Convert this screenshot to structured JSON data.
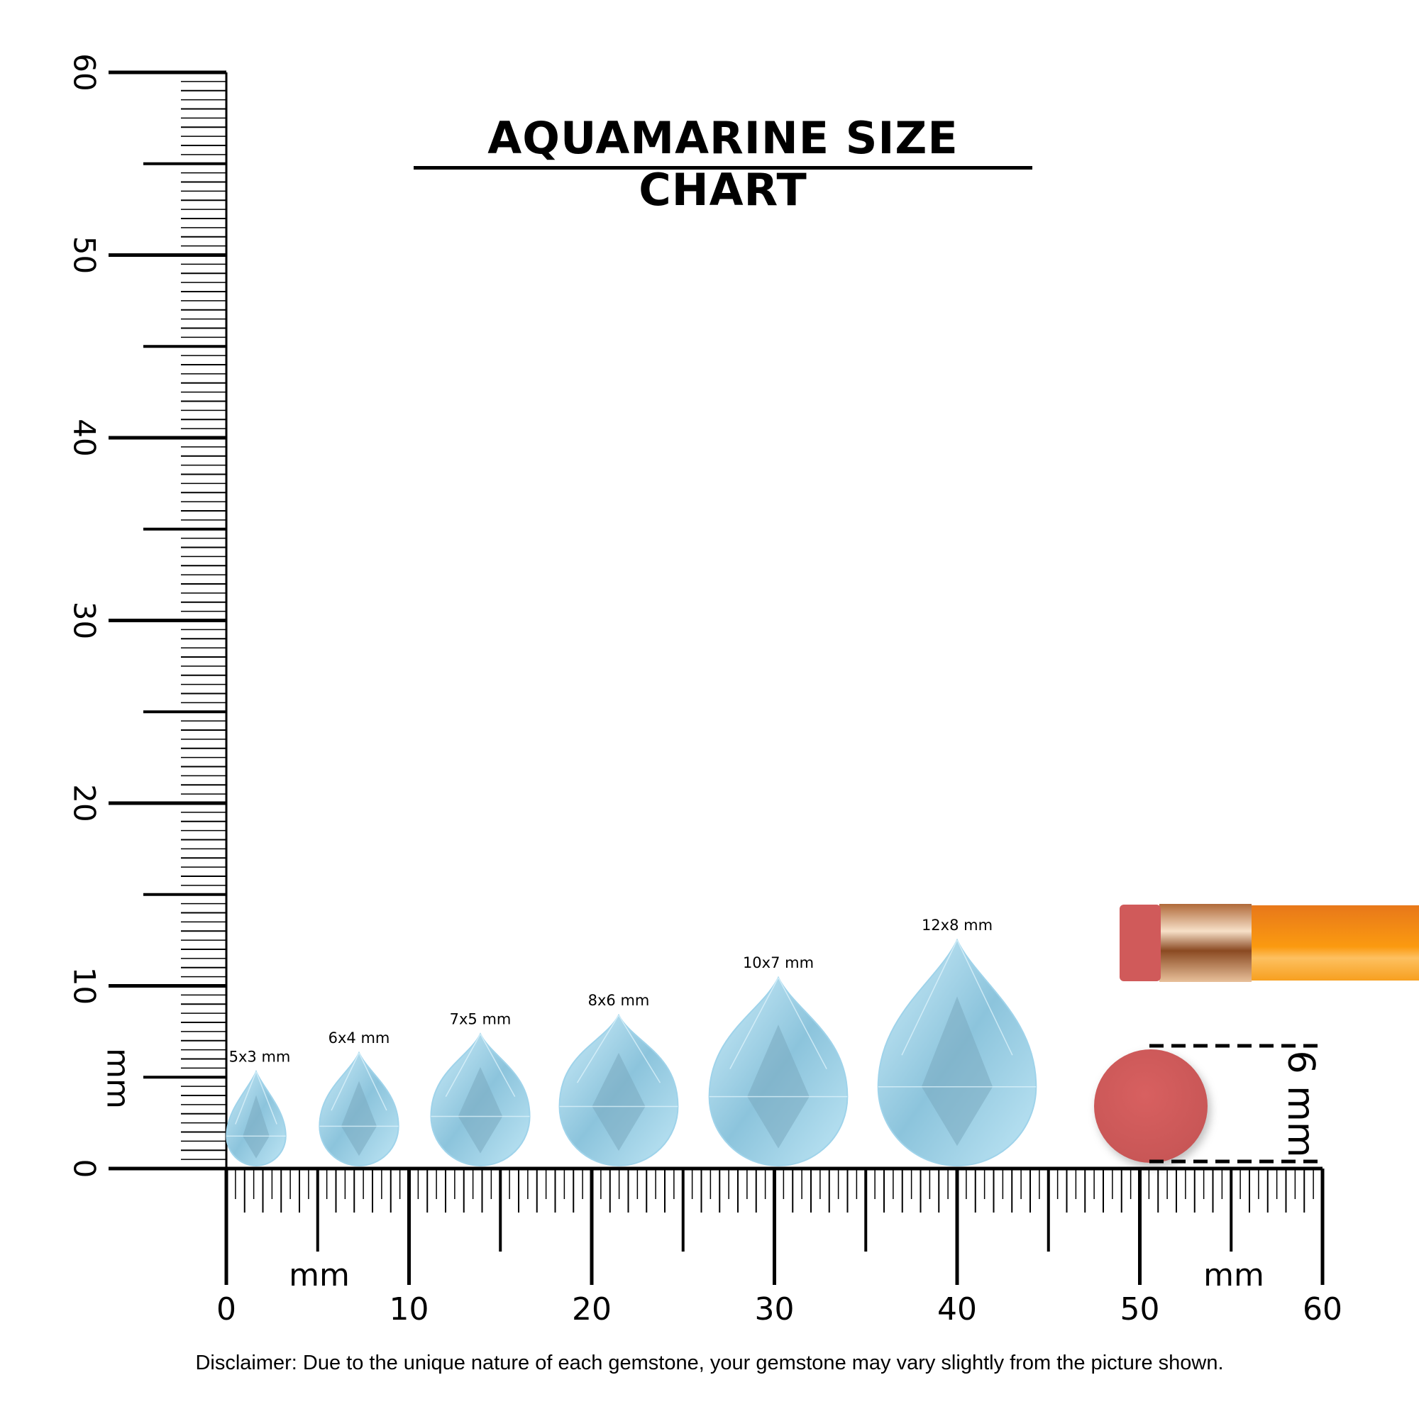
{
  "title": "AQUAMARINE SIZE CHART",
  "disclaimer": "Disclaimer: Due to the unique nature of each gemstone, your gemstone may vary slightly from the picture shown.",
  "ruler": {
    "unit_label": "mm",
    "range_mm": [
      0,
      60
    ],
    "major_labels": [
      "0",
      "10",
      "20",
      "30",
      "40",
      "50",
      "60"
    ]
  },
  "gems": [
    {
      "label": "5x3 mm",
      "length_mm": 5,
      "width_mm": 3
    },
    {
      "label": "6x4 mm",
      "length_mm": 6,
      "width_mm": 4
    },
    {
      "label": "7x5 mm",
      "length_mm": 7,
      "width_mm": 5
    },
    {
      "label": "8x6 mm",
      "length_mm": 8,
      "width_mm": 6
    },
    {
      "label": "10x7 mm",
      "length_mm": 10,
      "width_mm": 7
    },
    {
      "label": "12x8 mm",
      "length_mm": 12,
      "width_mm": 8
    }
  ],
  "reference": {
    "eraser_label": "6 mm",
    "eraser_color": "#d05a5a",
    "pencil_color": "#f7931e"
  },
  "colors": {
    "gem_light": "#bfe6f5",
    "gem_mid": "#8cc4dc",
    "gem_dark": "#5f97b3"
  }
}
